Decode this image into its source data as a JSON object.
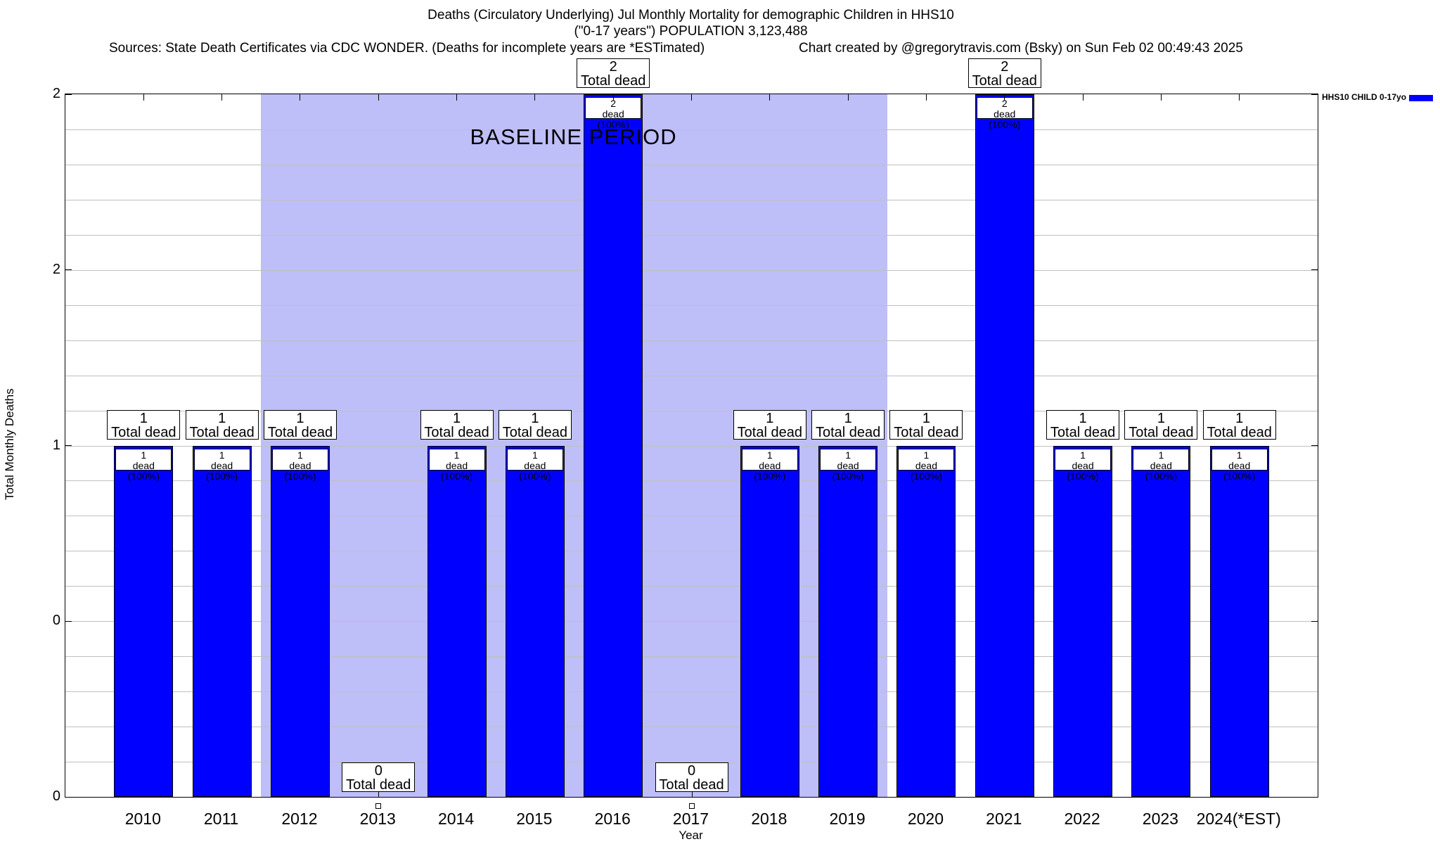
{
  "header": {
    "title_line1": "Deaths (Circulatory Underlying) Jul Monthly Mortality for demographic Children in HHS10",
    "title_line2": "(\"0-17 years\") POPULATION 3,123,488",
    "sources": "Sources: State Death Certificates via CDC WONDER. (Deaths for incomplete years are *ESTimated)",
    "credit": "Chart created by @gregorytravis.com (Bsky) on Sun Feb 02 00:49:43 2025"
  },
  "legend": {
    "label": "HHS10 CHILD 0-17yo",
    "swatch_color": "#0000ff"
  },
  "chart_data": {
    "type": "bar",
    "title": "Deaths (Circulatory Underlying) Jul Monthly Mortality for demographic Children in HHS10 (\"0-17 years\") POPULATION 3,123,488",
    "xlabel": "Year",
    "ylabel": "Total Monthly Deaths",
    "categories": [
      "2010",
      "2011",
      "2012",
      "2013",
      "2014",
      "2015",
      "2016",
      "2017",
      "2018",
      "2019",
      "2020",
      "2021",
      "2022",
      "2023",
      "2024(*EST)"
    ],
    "values": [
      1,
      1,
      1,
      0,
      1,
      1,
      2,
      0,
      1,
      1,
      1,
      2,
      1,
      1,
      1
    ],
    "series_name": "HHS10 CHILD 0-17yo",
    "ylim": [
      0,
      2
    ],
    "ytick_values": [
      2,
      1.5,
      1,
      0.5,
      0
    ],
    "ytick_labels": [
      "2",
      "2",
      "1",
      "0",
      "0"
    ],
    "minor_grid_step": 0.1,
    "grid": true,
    "legend_position": "top-right",
    "bar_color": "#0000ff",
    "grid_color": "#c0c0c0",
    "baseline_region": {
      "label": "BASELINE PERIOD",
      "start_category": "2012",
      "end_category": "2019",
      "from_index": 2,
      "to_index": 9,
      "color": "#bebef8"
    },
    "bar_top_label": "Total dead",
    "bar_inner_label": "dead (100%)"
  }
}
